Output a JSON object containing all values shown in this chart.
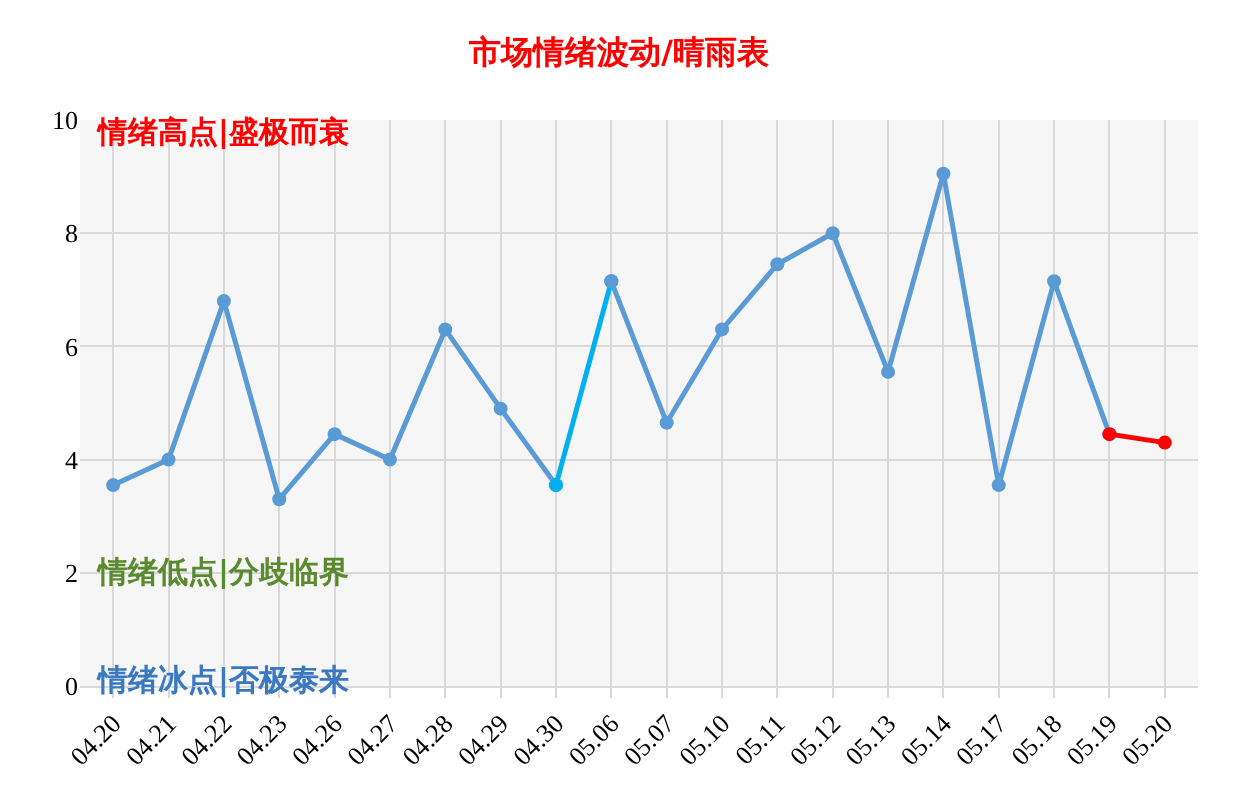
{
  "chart_data": {
    "type": "line",
    "title": "市场情绪波动/晴雨表",
    "categories": [
      "04.20",
      "04.21",
      "04.22",
      "04.23",
      "04.26",
      "04.27",
      "04.28",
      "04.29",
      "04.30",
      "05.06",
      "05.07",
      "05.10",
      "05.11",
      "05.12",
      "05.13",
      "05.14",
      "05.17",
      "05.18",
      "05.19",
      "05.20"
    ],
    "series": [
      {
        "color": "#5b9bd5",
        "values": [
          3.55,
          4.0,
          6.8,
          3.3,
          4.45,
          4.0,
          6.3,
          4.9,
          3.55,
          null,
          null,
          null,
          null,
          null,
          null,
          null,
          null,
          null,
          null,
          null
        ]
      },
      {
        "color": "#00b0f0",
        "values": [
          null,
          null,
          null,
          null,
          null,
          null,
          null,
          null,
          3.55,
          7.15,
          null,
          null,
          null,
          null,
          null,
          null,
          null,
          null,
          null,
          null
        ]
      },
      {
        "color": "#5b9bd5",
        "values": [
          null,
          null,
          null,
          null,
          null,
          null,
          null,
          null,
          null,
          7.15,
          4.65,
          6.3,
          7.45,
          8.0,
          5.55,
          9.05,
          3.55,
          7.15,
          4.45,
          null
        ]
      },
      {
        "color": "#ff0000",
        "values": [
          null,
          null,
          null,
          null,
          null,
          null,
          null,
          null,
          null,
          null,
          null,
          null,
          null,
          null,
          null,
          null,
          null,
          null,
          4.45,
          4.3
        ]
      }
    ],
    "ylim": [
      0,
      10
    ],
    "yticks": [
      0,
      2,
      4,
      6,
      8,
      10
    ],
    "grid": true,
    "marker": "circle",
    "line_style": "solid",
    "annotations": [
      "情绪高点|盛极而衰",
      "情绪低点|分歧临界",
      "情绪冰点|否极泰来"
    ]
  }
}
